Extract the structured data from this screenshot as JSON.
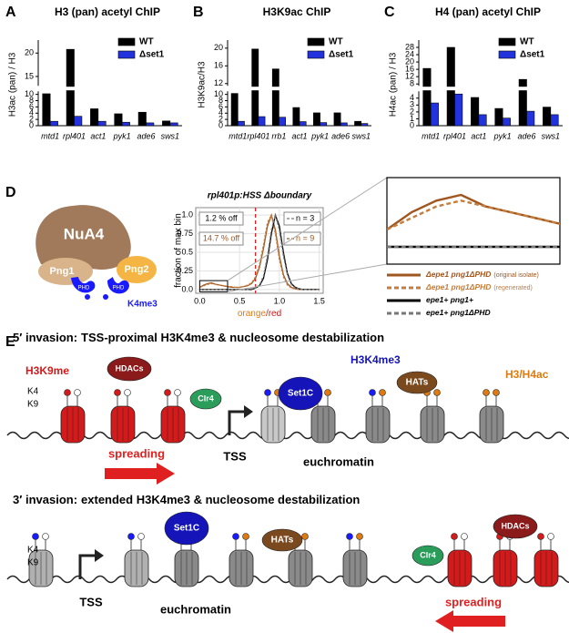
{
  "panel_labels": [
    "A",
    "B",
    "C",
    "D",
    "E"
  ],
  "chart_data": [
    {
      "type": "bar",
      "title": "H3 (pan) acetyl ChIP",
      "y_label": "H3ac (pan) / H3",
      "categories": [
        "mtd1",
        "rpl401",
        "act1",
        "pyk1",
        "ade6",
        "sws1"
      ],
      "series": [
        {
          "name": "WT",
          "color": "#000000",
          "values": [
            10.2,
            20.8,
            5.4,
            3.8,
            4.3,
            1.5
          ]
        },
        {
          "name": "Δset1",
          "color": "#2233dd",
          "values": [
            1.4,
            3.0,
            1.4,
            1.1,
            0.9,
            0.9
          ]
        }
      ],
      "ylim": [
        0,
        22
      ],
      "y_break": [
        11,
        13
      ],
      "yticks": [
        0,
        2,
        4,
        6,
        8,
        10,
        15,
        20
      ],
      "legend": "upper right"
    },
    {
      "type": "bar",
      "title": "H3K9ac ChIP",
      "y_label": "H3K9ac/H3",
      "categories": [
        "mtd1",
        "rpl401",
        "rrb1",
        "act1",
        "pyk1",
        "ade6",
        "sws1"
      ],
      "series": [
        {
          "name": "WT",
          "color": "#000000",
          "values": [
            10.3,
            19.8,
            15.3,
            5.8,
            4.1,
            4.1,
            1.4
          ]
        },
        {
          "name": "Δset1",
          "color": "#2233dd",
          "values": [
            1.4,
            2.9,
            2.7,
            1.3,
            1.0,
            0.9,
            0.7
          ]
        }
      ],
      "ylim": [
        0,
        21
      ],
      "y_break": [
        11,
        11.5
      ],
      "yticks": [
        0,
        2,
        4,
        6,
        8,
        10,
        12,
        16,
        20
      ],
      "legend": "upper right"
    },
    {
      "type": "bar",
      "title": "H4 (pan) acetyl ChIP",
      "y_label": "H4ac (pan) / H3",
      "categories": [
        "mtd1",
        "rpl401",
        "act1",
        "pyk1",
        "ade6",
        "sws1"
      ],
      "series": [
        {
          "name": "WT",
          "color": "#000000",
          "values": [
            16.5,
            28,
            4.1,
            2.5,
            10.5,
            2.7
          ]
        },
        {
          "name": "Δset1",
          "color": "#2233dd",
          "values": [
            3.3,
            4.6,
            1.6,
            1.1,
            2.1,
            1.6
          ]
        }
      ],
      "ylim": [
        0,
        30
      ],
      "y_break": [
        5,
        7
      ],
      "yticks": [
        0,
        1,
        2,
        3,
        4,
        8,
        12,
        16,
        20,
        24,
        28
      ],
      "legend": "upper right"
    },
    {
      "type": "line",
      "title": "rpl401p:HSS Δboundary",
      "y_label": "fraction of max bin",
      "x_label_parts": [
        "orange",
        "/red"
      ],
      "x": [
        0,
        0.05,
        0.1,
        0.15,
        0.2,
        0.25,
        0.3,
        0.35,
        0.4,
        0.45,
        0.5,
        0.55,
        0.6,
        0.65,
        0.7,
        0.75,
        0.8,
        0.85,
        0.9,
        0.95,
        1,
        1.05,
        1.1,
        1.15,
        1.2,
        1.25,
        1.3,
        1.35,
        1.4,
        1.45,
        1.5
      ],
      "series": [
        {
          "name": "Δepe1 png1ΔPHD",
          "note": "(original isolate)",
          "color": "#a0561f",
          "dashed": false,
          "values": [
            0.03,
            0.06,
            0.08,
            0.09,
            0.07,
            0.06,
            0.05,
            0.04,
            0.03,
            0.03,
            0.03,
            0.04,
            0.05,
            0.08,
            0.15,
            0.3,
            0.55,
            0.85,
            1.0,
            0.8,
            0.45,
            0.2,
            0.08,
            0.03,
            0.01,
            0,
            0,
            0,
            0,
            0,
            0
          ]
        },
        {
          "name": "Δepe1 png1ΔPHD",
          "note": "(regenerated)",
          "color": "#c47d3c",
          "dashed": true,
          "values": [
            0.03,
            0.05,
            0.07,
            0.08,
            0.07,
            0.06,
            0.05,
            0.04,
            0.04,
            0.03,
            0.03,
            0.04,
            0.06,
            0.09,
            0.17,
            0.33,
            0.6,
            0.9,
            1.0,
            0.75,
            0.4,
            0.17,
            0.06,
            0.02,
            0.01,
            0,
            0,
            0,
            0,
            0,
            0
          ]
        },
        {
          "name": "epe1+ png1+",
          "color": "#000000",
          "dashed": false,
          "values": [
            0,
            0,
            0,
            0,
            0,
            0,
            0,
            0,
            0,
            0,
            0,
            0,
            0,
            0,
            0.02,
            0.05,
            0.15,
            0.4,
            0.75,
            1.0,
            0.85,
            0.5,
            0.22,
            0.08,
            0.03,
            0.01,
            0,
            0,
            0,
            0,
            0
          ]
        },
        {
          "name": "epe1+ png1ΔPHD",
          "color": "#777777",
          "dashed": true,
          "values": [
            0,
            0,
            0,
            0,
            0,
            0,
            0,
            0,
            0,
            0,
            0,
            0,
            0,
            0.01,
            0.02,
            0.06,
            0.18,
            0.45,
            0.8,
            1.0,
            0.8,
            0.45,
            0.2,
            0.07,
            0.02,
            0.01,
            0,
            0,
            0,
            0,
            0
          ]
        }
      ],
      "xlim": [
        -0.05,
        1.55
      ],
      "xticks": [
        {
          "value": 0,
          "label": "0.0"
        },
        {
          "value": 0.5,
          "label": "0.5"
        },
        {
          "value": 1,
          "label": "1.0"
        },
        1.5
      ],
      "ylim": [
        -0.05,
        1.1
      ],
      "yticks": [
        {
          "value": 0,
          "label": "0.0"
        },
        0.25,
        0.5,
        0.75,
        {
          "value": 1,
          "label": "1.0"
        }
      ],
      "grid": true,
      "threshold_x": 0.7,
      "annotations": [
        "1.2 % off",
        "14.7 % off",
        "n = 3",
        "n = 9"
      ],
      "zoom": {
        "xlim": [
          0,
          0.35
        ],
        "ylim": [
          -0.03,
          0.12
        ]
      }
    }
  ],
  "diagram_d": {
    "nua4": "NuA4",
    "png1": "Png1",
    "phd1": "PHD",
    "png2": "Png2",
    "phd2": "PHD",
    "mark": "K4me3"
  },
  "diagram_e": {
    "top": {
      "heading": "5′ invasion:",
      "subheading": "TSS-proximal H3K4me3 & nucleosome destabilization",
      "h3k9me": "H3K9me",
      "hdacs": "HDACs",
      "h3k4me3": "H3K4me3",
      "set1c": "Set1C",
      "h3h4ac": "H3/H4ac",
      "hats": "HATs",
      "k4": "K4",
      "k9": "K9",
      "clr4": "Clr4",
      "tss": "TSS",
      "spreading": "spreading",
      "euchromatin": "euchromatin"
    },
    "bottom": {
      "heading": "3′ invasion:",
      "subheading": "extended H3K4me3 & nucleosome destabilization",
      "k4": "K4",
      "k9": "K9",
      "set1c": "Set1C",
      "hats": "HATs",
      "clr4": "Clr4",
      "hdacs": "HDACs",
      "tss": "TSS",
      "euchromatin": "euchromatin",
      "spreading": "spreading"
    }
  }
}
